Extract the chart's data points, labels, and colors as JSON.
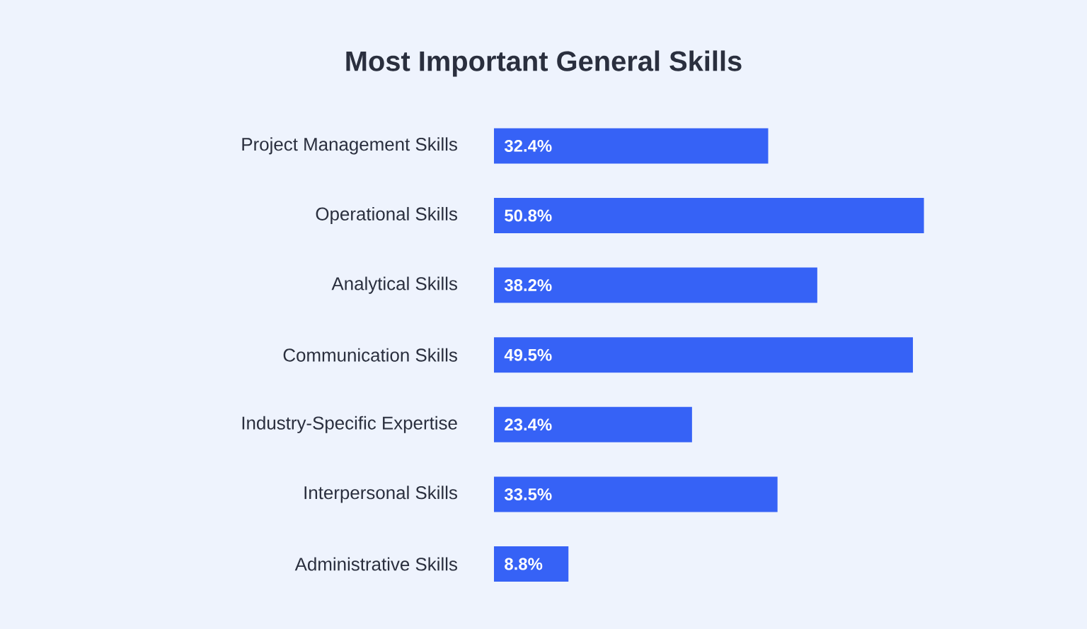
{
  "chart_data": {
    "type": "bar",
    "orientation": "horizontal",
    "title": "Most Important General Skills",
    "categories": [
      "Project Management Skills",
      "Operational Skills",
      "Analytical Skills",
      "Communication Skills",
      "Industry-Specific Expertise",
      "Interpersonal Skills",
      "Administrative Skills"
    ],
    "values": [
      32.4,
      50.8,
      38.2,
      49.5,
      23.4,
      33.5,
      8.8
    ],
    "value_labels": [
      "32.4%",
      "50.8%",
      "38.2%",
      "49.5%",
      "23.4%",
      "33.5%",
      "8.8%"
    ],
    "color": "#3662f6"
  }
}
